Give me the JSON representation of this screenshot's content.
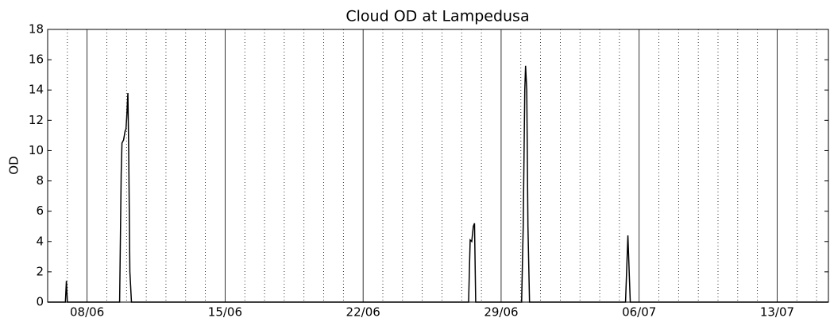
{
  "chart_data": {
    "type": "line",
    "title": "Cloud OD at Lampedusa",
    "y_label": "OD",
    "x": [
      6.0,
      6.9,
      6.95,
      7.0,
      9.65,
      9.73,
      9.77,
      9.85,
      9.93,
      9.97,
      10.01,
      10.07,
      10.11,
      10.17,
      10.25,
      27.35,
      27.43,
      27.51,
      27.59,
      27.65,
      27.71,
      30.04,
      30.12,
      30.2,
      30.24,
      30.3,
      30.36,
      30.44,
      35.31,
      35.43,
      35.55,
      45.6
    ],
    "series": [
      {
        "name": "OD",
        "color": "#000000",
        "values": [
          0,
          0,
          1.4,
          0,
          0,
          8.5,
          10.5,
          10.7,
          11.3,
          11.4,
          12.2,
          13.8,
          10,
          2,
          0,
          0,
          4.1,
          4.0,
          5.0,
          5.2,
          0,
          0,
          5,
          14,
          15.6,
          14,
          5,
          0,
          0,
          4.4,
          0,
          0
        ]
      }
    ],
    "xlim": [
      6.0,
      45.6
    ],
    "xticks": [
      {
        "value": 8,
        "label": "08/06"
      },
      {
        "value": 15,
        "label": "15/06"
      },
      {
        "value": 22,
        "label": "22/06"
      },
      {
        "value": 29,
        "label": "29/06"
      },
      {
        "value": 36,
        "label": "06/07"
      },
      {
        "value": 43,
        "label": "13/07"
      }
    ],
    "xminorticks": [
      7,
      9,
      10,
      11,
      12,
      13,
      14,
      16,
      17,
      18,
      19,
      20,
      21,
      23,
      24,
      25,
      26,
      27,
      28,
      30,
      31,
      32,
      33,
      34,
      35,
      37,
      38,
      39,
      40,
      41,
      42,
      44,
      45
    ],
    "ylim": [
      0,
      18
    ],
    "yticks": [
      0,
      2,
      4,
      6,
      8,
      10,
      12,
      14,
      16,
      18
    ],
    "grid": true
  }
}
